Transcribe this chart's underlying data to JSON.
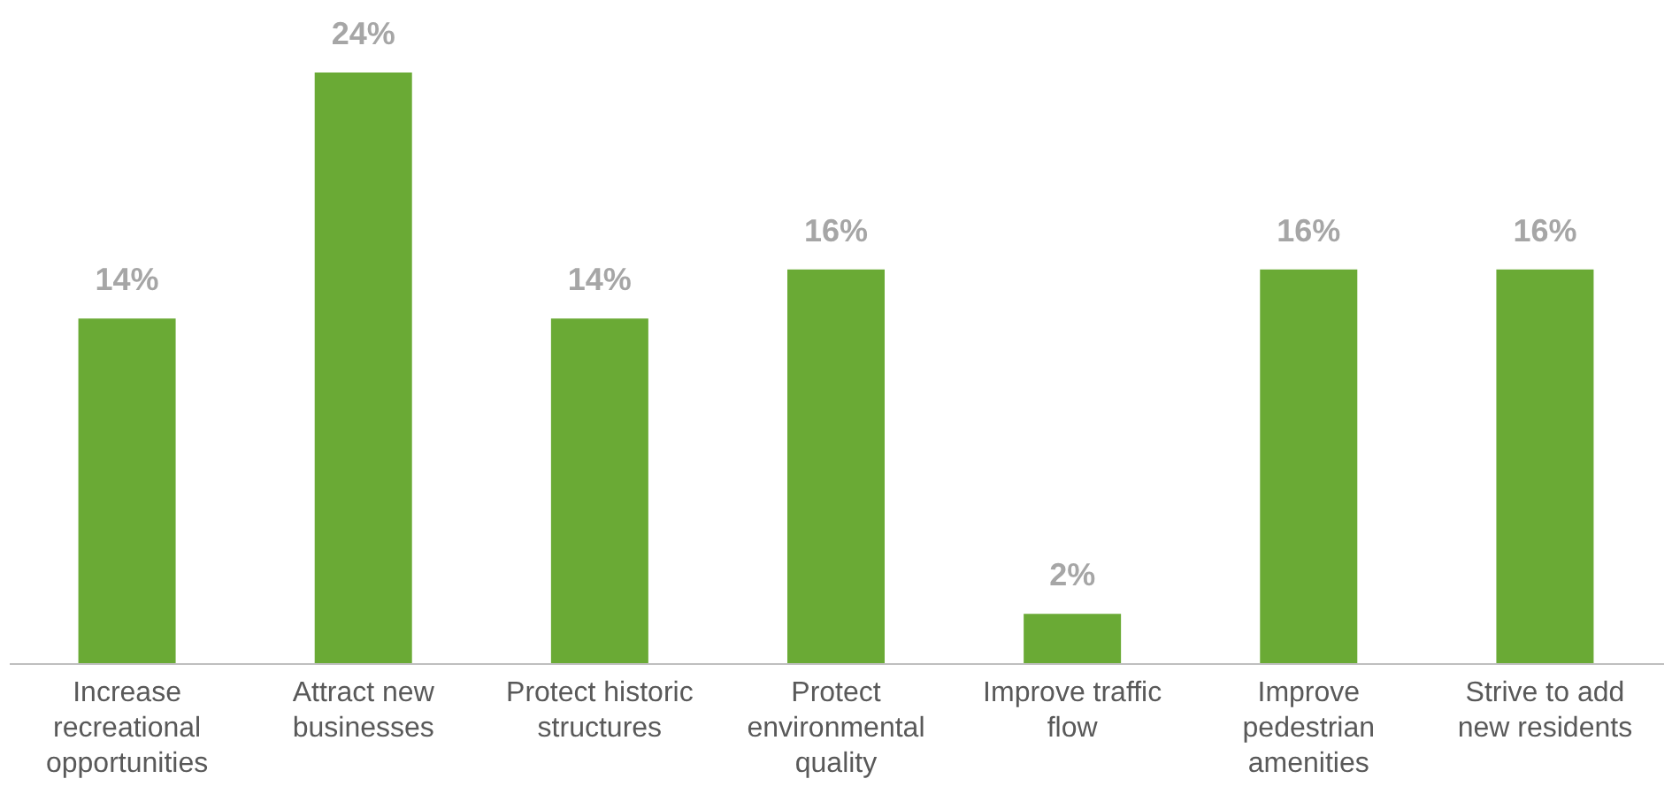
{
  "chart_data": {
    "type": "bar",
    "categories": [
      "Increase recreational opportunities",
      "Attract new businesses",
      "Protect historic structures",
      "Protect environmental quality",
      "Improve traffic flow",
      "Improve pedestrian amenities",
      "Strive to add new residents"
    ],
    "values": [
      14,
      24,
      14,
      16,
      2,
      16,
      16
    ],
    "value_labels": [
      "14%",
      "24%",
      "14%",
      "16%",
      "2%",
      "16%",
      "16%"
    ],
    "color": "#6aaa35"
  }
}
